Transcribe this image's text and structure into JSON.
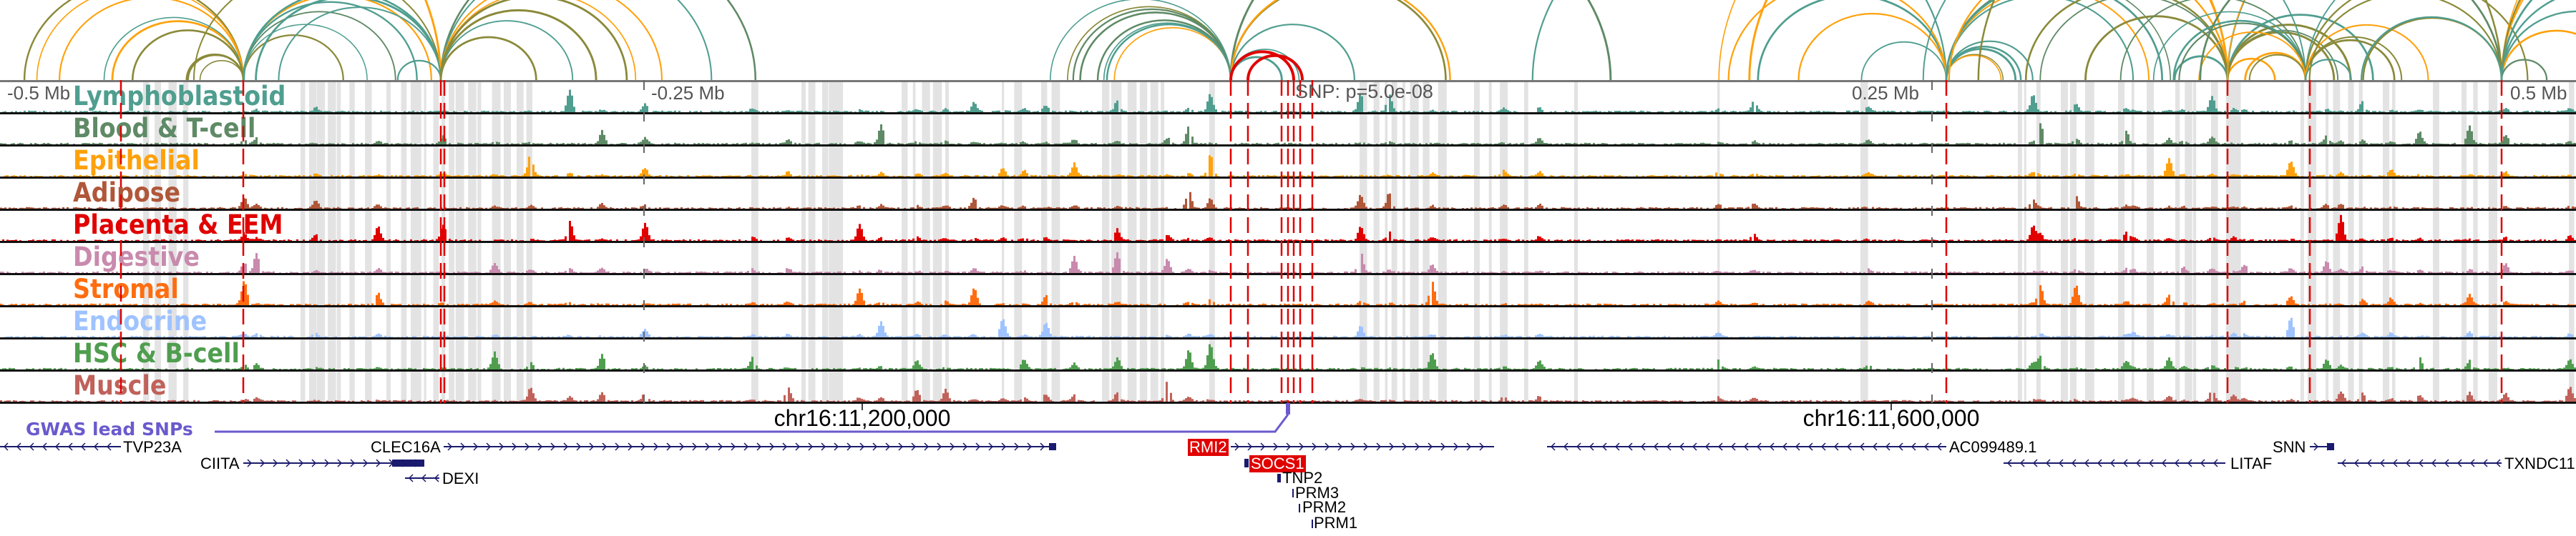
{
  "axis": {
    "minus_half": "-0.5 Mb",
    "minus_quarter": "-0.25 Mb",
    "plus_quarter": "0.25 Mb",
    "plus_half": "0.5 Mb"
  },
  "snp_label": "SNP: p=5.0e-08",
  "gwas_label": "GWAS lead SNPs",
  "chr_labels": [
    "chr16:11,200,000",
    "chr16:11,600,000"
  ],
  "tracks": [
    {
      "name": "Lymphoblastoid",
      "color": "#4f9e8f"
    },
    {
      "name": "Blood & T-cell",
      "color": "#5f8a66"
    },
    {
      "name": "Epithelial",
      "color": "#ffa10c"
    },
    {
      "name": "Adipose",
      "color": "#b0573a"
    },
    {
      "name": "Placenta & EEM",
      "color": "#e00000"
    },
    {
      "name": "Digestive",
      "color": "#c88aad"
    },
    {
      "name": "Stromal",
      "color": "#ff6d10"
    },
    {
      "name": "Endocrine",
      "color": "#9fc3ff"
    },
    {
      "name": "HSC & B-cell",
      "color": "#4f9e4f"
    },
    {
      "name": "Muscle",
      "color": "#c0625a"
    }
  ],
  "genes": {
    "tvp23a": "TVP23A",
    "ciita": "CIITA",
    "clec16a": "CLEC16A",
    "dexi": "DEXI",
    "rmi2": "RMI2",
    "socs1": "SOCS1",
    "tnp2": "TNP2",
    "prm3": "PRM3",
    "prm2": "PRM2",
    "prm1": "PRM1",
    "ac099489": "AC099489.1",
    "litaf": "LITAF",
    "snn": "SNN",
    "txndc11": "TXNDC11"
  },
  "colors": {
    "arc_teal": "#4f9e8f",
    "arc_green": "#5f8a66",
    "arc_orange": "#ffa10c",
    "arc_olive": "#8a8a3a",
    "highlight": "#e00000",
    "gene": "#1a1a6e",
    "gwas": "#6a5acd"
  }
}
